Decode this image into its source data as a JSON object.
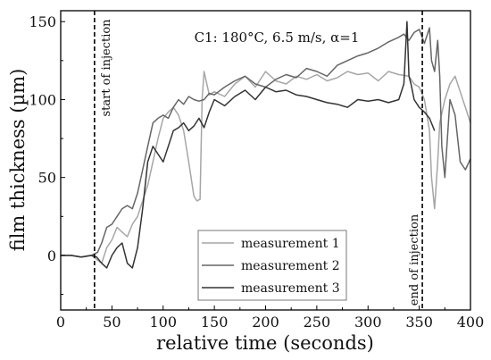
{
  "chart_data": {
    "type": "line",
    "title": "C1: 180°C, 6.5 m/s, α=1",
    "xlabel": "relative time (seconds)",
    "ylabel": "film thickness (µm)",
    "xlim": [
      0,
      400
    ],
    "ylim": [
      -35,
      157
    ],
    "xticks": [
      "0",
      "50",
      "100",
      "150",
      "200",
      "250",
      "300",
      "350",
      "400"
    ],
    "yticks": [
      "0",
      "50",
      "100",
      "150"
    ],
    "grid": false,
    "legend_placement": "bottom-center",
    "annotations": [
      {
        "text": "start of injection",
        "x": 33
      },
      {
        "text": "end of injection",
        "x": 353
      }
    ],
    "series": [
      {
        "name": "measurement 1",
        "color": "#a6a6a6",
        "x": [
          0,
          10,
          20,
          30,
          36,
          40,
          45,
          50,
          55,
          60,
          65,
          70,
          75,
          80,
          85,
          90,
          95,
          100,
          105,
          110,
          115,
          120,
          125,
          130,
          133,
          136,
          138,
          140,
          145,
          150,
          160,
          170,
          180,
          190,
          200,
          210,
          220,
          230,
          240,
          250,
          260,
          270,
          280,
          290,
          300,
          310,
          320,
          330,
          340,
          345,
          350,
          355,
          360,
          362,
          365,
          368,
          370,
          375,
          380,
          385,
          390,
          395,
          400
        ],
        "values": [
          0,
          0,
          -1,
          0,
          -3,
          -5,
          5,
          10,
          18,
          15,
          12,
          20,
          25,
          35,
          45,
          60,
          75,
          88,
          92,
          95,
          90,
          80,
          60,
          38,
          35,
          36,
          100,
          118,
          103,
          105,
          102,
          110,
          115,
          108,
          118,
          112,
          110,
          115,
          113,
          116,
          112,
          114,
          118,
          116,
          117,
          112,
          118,
          116,
          115,
          110,
          108,
          100,
          80,
          50,
          30,
          60,
          85,
          100,
          110,
          115,
          105,
          95,
          85
        ]
      },
      {
        "name": "measurement 2",
        "color": "#666666",
        "x": [
          0,
          10,
          20,
          30,
          36,
          40,
          45,
          50,
          55,
          60,
          65,
          70,
          75,
          80,
          85,
          90,
          95,
          100,
          105,
          110,
          115,
          120,
          125,
          130,
          135,
          140,
          145,
          150,
          160,
          170,
          180,
          190,
          200,
          210,
          220,
          230,
          240,
          250,
          260,
          270,
          280,
          290,
          300,
          310,
          320,
          330,
          335,
          340,
          345,
          350,
          355,
          360,
          362,
          365,
          368,
          370,
          372,
          375,
          380,
          385,
          390,
          395,
          400
        ],
        "values": [
          0,
          0,
          -1,
          0,
          2,
          8,
          18,
          20,
          25,
          30,
          32,
          30,
          40,
          55,
          70,
          85,
          88,
          90,
          88,
          95,
          100,
          97,
          102,
          100,
          99,
          100,
          104,
          103,
          108,
          112,
          115,
          110,
          108,
          113,
          116,
          114,
          120,
          118,
          115,
          122,
          125,
          128,
          130,
          133,
          137,
          140,
          142,
          138,
          143,
          145,
          136,
          146,
          125,
          118,
          138,
          115,
          70,
          50,
          100,
          90,
          60,
          55,
          62
        ]
      },
      {
        "name": "measurement 3",
        "color": "#333333",
        "x": [
          0,
          10,
          20,
          30,
          35,
          40,
          45,
          50,
          55,
          60,
          65,
          70,
          75,
          80,
          85,
          90,
          95,
          100,
          105,
          110,
          115,
          120,
          125,
          130,
          135,
          140,
          145,
          150,
          160,
          170,
          180,
          190,
          200,
          210,
          220,
          230,
          240,
          250,
          260,
          270,
          280,
          290,
          300,
          310,
          320,
          330,
          335,
          338,
          340,
          342,
          345,
          350,
          355,
          360,
          365
        ],
        "values": [
          0,
          0,
          -1,
          0,
          -1,
          -5,
          -8,
          0,
          5,
          8,
          -5,
          -8,
          5,
          30,
          60,
          70,
          65,
          60,
          70,
          80,
          82,
          85,
          80,
          83,
          88,
          82,
          92,
          100,
          96,
          102,
          106,
          100,
          108,
          105,
          106,
          103,
          102,
          100,
          98,
          97,
          95,
          100,
          99,
          100,
          98,
          100,
          110,
          150,
          115,
          110,
          100,
          95,
          92,
          88,
          80
        ]
      }
    ]
  }
}
